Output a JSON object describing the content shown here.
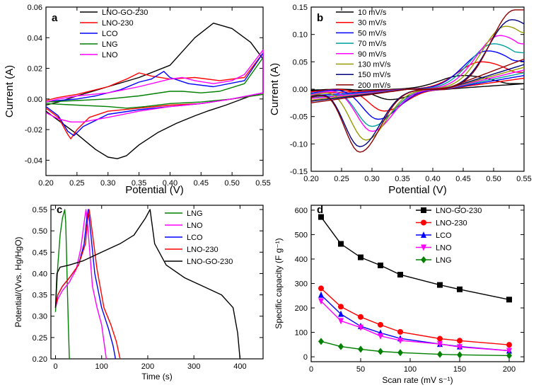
{
  "chart_data": [
    {
      "panel_label": "a",
      "type": "line",
      "xlabel": "Potential (V)",
      "ylabel": "Current (A)",
      "xlim": [
        0.2,
        0.55
      ],
      "ylim": [
        -0.05,
        0.06
      ],
      "xticks": [
        "0.20",
        "0.25",
        "0.30",
        "0.35",
        "0.40",
        "0.45",
        "0.50",
        "0.55"
      ],
      "yticks": [
        "-0.04",
        "-0.02",
        "0.00",
        "0.02",
        "0.04",
        "0.06"
      ],
      "grid": false,
      "legend_position": "top-left",
      "series": [
        {
          "name": "LNO-GO-230",
          "color": "#000000",
          "x": [
            0.2,
            0.22,
            0.25,
            0.28,
            0.3,
            0.315,
            0.33,
            0.35,
            0.38,
            0.41,
            0.44,
            0.46,
            0.475,
            0.49,
            0.51,
            0.53,
            0.55,
            0.55,
            0.53,
            0.5,
            0.47,
            0.44,
            0.4,
            0.35,
            0.3,
            0.25,
            0.22,
            0.2
          ],
          "y": [
            -0.008,
            -0.014,
            -0.023,
            -0.033,
            -0.038,
            -0.039,
            -0.037,
            -0.03,
            -0.022,
            -0.016,
            -0.011,
            -0.008,
            -0.006,
            -0.004,
            -0.001,
            0.002,
            0.004,
            0.026,
            0.037,
            0.046,
            0.0495,
            0.04,
            0.022,
            0.014,
            0.008,
            0.002,
            -0.002,
            -0.004
          ]
        },
        {
          "name": "LNO-230",
          "color": "#ff0000",
          "x": [
            0.2,
            0.22,
            0.235,
            0.24,
            0.25,
            0.27,
            0.3,
            0.35,
            0.4,
            0.45,
            0.5,
            0.55,
            0.55,
            0.52,
            0.48,
            0.44,
            0.4,
            0.37,
            0.35,
            0.33,
            0.3,
            0.25,
            0.22,
            0.2
          ],
          "y": [
            -0.006,
            -0.012,
            -0.023,
            -0.026,
            -0.02,
            -0.012,
            -0.008,
            -0.006,
            -0.004,
            -0.003,
            0.0,
            0.003,
            0.03,
            0.014,
            0.012,
            0.014,
            0.013,
            0.015,
            0.017,
            0.013,
            0.008,
            0.003,
            0.001,
            -0.001
          ]
        },
        {
          "name": "LCO",
          "color": "#0000ff",
          "x": [
            0.2,
            0.22,
            0.235,
            0.245,
            0.26,
            0.3,
            0.35,
            0.4,
            0.45,
            0.5,
            0.55,
            0.55,
            0.52,
            0.47,
            0.43,
            0.4,
            0.39,
            0.37,
            0.35,
            0.32,
            0.28,
            0.25,
            0.22,
            0.2
          ],
          "y": [
            -0.005,
            -0.011,
            -0.021,
            -0.024,
            -0.018,
            -0.01,
            -0.007,
            -0.005,
            -0.003,
            0.0,
            0.004,
            0.03,
            0.012,
            0.008,
            0.01,
            0.014,
            0.018,
            0.013,
            0.011,
            0.006,
            0.002,
            0.0,
            -0.001,
            -0.002
          ]
        },
        {
          "name": "LNG",
          "color": "#008000",
          "x": [
            0.2,
            0.25,
            0.3,
            0.33,
            0.36,
            0.4,
            0.45,
            0.5,
            0.55,
            0.55,
            0.52,
            0.48,
            0.45,
            0.42,
            0.4,
            0.35,
            0.3,
            0.25,
            0.2
          ],
          "y": [
            -0.003,
            -0.004,
            -0.005,
            -0.006,
            -0.005,
            -0.003,
            -0.002,
            0.0,
            0.003,
            0.027,
            0.01,
            0.005,
            0.004,
            0.005,
            0.005,
            0.002,
            0.0,
            -0.001,
            -0.002
          ]
        },
        {
          "name": "LNO",
          "color": "#ff00ff",
          "x": [
            0.2,
            0.22,
            0.24,
            0.26,
            0.3,
            0.35,
            0.4,
            0.45,
            0.5,
            0.55,
            0.55,
            0.52,
            0.5,
            0.47,
            0.44,
            0.42,
            0.4,
            0.35,
            0.3,
            0.25,
            0.22,
            0.2
          ],
          "y": [
            -0.009,
            -0.013,
            -0.015,
            -0.015,
            -0.012,
            -0.008,
            -0.005,
            -0.003,
            0.0,
            0.004,
            0.032,
            0.016,
            0.012,
            0.01,
            0.012,
            0.014,
            0.013,
            0.008,
            0.004,
            0.002,
            0.0,
            -0.002
          ]
        }
      ]
    },
    {
      "panel_label": "b",
      "type": "line",
      "xlabel": "Potential (V)",
      "ylabel": "Current (A)",
      "xlim": [
        0.2,
        0.55
      ],
      "ylim": [
        -0.15,
        0.15
      ],
      "xticks": [
        "0.20",
        "0.25",
        "0.30",
        "0.35",
        "0.40",
        "0.45",
        "0.50",
        "0.55"
      ],
      "yticks": [
        "-0.15",
        "-0.10",
        "-0.05",
        "0.00",
        "0.05",
        "0.10",
        "0.15"
      ],
      "grid": false,
      "legend_position": "top-left",
      "series": [
        {
          "name": "10 mV/s",
          "color": "#000000",
          "cathodic_peak": [
            0.33,
            -0.019
          ],
          "anodic_peak": [
            0.45,
            0.025
          ],
          "end_high": 0.01,
          "end_low": 0.01,
          "start": -0.003
        },
        {
          "name": "30 mV/s",
          "color": "#ff0000",
          "cathodic_peak": [
            0.32,
            -0.04
          ],
          "anodic_peak": [
            0.48,
            0.05
          ],
          "end_high": 0.03,
          "end_low": 0.02,
          "start": -0.008
        },
        {
          "name": "50 mV/s",
          "color": "#0000ff",
          "cathodic_peak": [
            0.31,
            -0.055
          ],
          "anodic_peak": [
            0.49,
            0.07
          ],
          "end_high": 0.05,
          "end_low": 0.025,
          "start": -0.012
        },
        {
          "name": "70 mV/s",
          "color": "#00a0a0",
          "cathodic_peak": [
            0.3,
            -0.068
          ],
          "anodic_peak": [
            0.5,
            0.083
          ],
          "end_high": 0.065,
          "end_low": 0.03,
          "start": -0.015
        },
        {
          "name": "90 mV/s",
          "color": "#ff00ff",
          "cathodic_peak": [
            0.3,
            -0.077
          ],
          "anodic_peak": [
            0.51,
            0.098
          ],
          "end_high": 0.08,
          "end_low": 0.035,
          "start": -0.017
        },
        {
          "name": "130 mV/s",
          "color": "#999900",
          "cathodic_peak": [
            0.29,
            -0.093
          ],
          "anodic_peak": [
            0.52,
            0.115
          ],
          "end_high": 0.1,
          "end_low": 0.04,
          "start": -0.02
        },
        {
          "name": "150 mV/s",
          "color": "#000080",
          "cathodic_peak": [
            0.28,
            -0.105
          ],
          "anodic_peak": [
            0.53,
            0.127
          ],
          "end_high": 0.115,
          "end_low": 0.045,
          "start": -0.022
        },
        {
          "name": "200 mV/s",
          "color": "#8b0000",
          "cathodic_peak": [
            0.28,
            -0.115
          ],
          "anodic_peak": [
            0.535,
            0.145
          ],
          "end_high": 0.145,
          "end_low": 0.055,
          "start": -0.025
        }
      ]
    },
    {
      "panel_label": "c",
      "type": "line",
      "xlabel": "Time (s)",
      "ylabel": "Potential/(Vvs. Hg/HgO)",
      "xlim": [
        -10,
        450
      ],
      "ylim": [
        0.2,
        0.56
      ],
      "xticks": [
        "0",
        "100",
        "200",
        "300",
        "400"
      ],
      "yticks": [
        "0.20",
        "0.25",
        "0.30",
        "0.35",
        "0.40",
        "0.45",
        "0.50",
        "0.55"
      ],
      "grid": false,
      "legend_position": "top-right",
      "series": [
        {
          "name": "LNG",
          "color": "#008000",
          "x": [
            0,
            2,
            5,
            10,
            15,
            20,
            22,
            24,
            26,
            28,
            30
          ],
          "y": [
            0.31,
            0.36,
            0.42,
            0.49,
            0.53,
            0.55,
            0.52,
            0.44,
            0.35,
            0.27,
            0.2
          ]
        },
        {
          "name": "LNO",
          "color": "#ff00ff",
          "x": [
            0,
            5,
            15,
            30,
            45,
            55,
            62,
            66,
            70,
            80,
            90,
            100,
            105,
            110
          ],
          "y": [
            0.32,
            0.34,
            0.36,
            0.38,
            0.41,
            0.46,
            0.52,
            0.55,
            0.51,
            0.37,
            0.32,
            0.28,
            0.24,
            0.2
          ]
        },
        {
          "name": "LCO",
          "color": "#0000ff",
          "x": [
            0,
            5,
            15,
            30,
            50,
            62,
            68,
            71,
            75,
            85,
            100,
            115,
            125,
            130
          ],
          "y": [
            0.32,
            0.35,
            0.37,
            0.39,
            0.42,
            0.47,
            0.53,
            0.55,
            0.51,
            0.4,
            0.32,
            0.27,
            0.23,
            0.2
          ]
        },
        {
          "name": "LNO-230",
          "color": "#ff0000",
          "x": [
            0,
            5,
            15,
            30,
            50,
            65,
            70,
            73,
            77,
            90,
            105,
            120,
            132,
            140
          ],
          "y": [
            0.32,
            0.35,
            0.37,
            0.39,
            0.42,
            0.47,
            0.53,
            0.55,
            0.52,
            0.41,
            0.32,
            0.28,
            0.24,
            0.2
          ]
        },
        {
          "name": "LNO-GO-230",
          "color": "#000000",
          "x": [
            0,
            3,
            10,
            30,
            60,
            100,
            140,
            170,
            195,
            205,
            215,
            240,
            280,
            320,
            360,
            385,
            395,
            400
          ],
          "y": [
            0.32,
            0.4,
            0.415,
            0.42,
            0.43,
            0.45,
            0.47,
            0.49,
            0.53,
            0.55,
            0.47,
            0.42,
            0.39,
            0.37,
            0.35,
            0.32,
            0.26,
            0.2
          ]
        }
      ]
    },
    {
      "panel_label": "d",
      "type": "line",
      "xlabel": "Scan rate (mV s⁻¹)",
      "ylabel": "Specific capacity (F g⁻¹)",
      "xlim": [
        0,
        215
      ],
      "ylim": [
        -20,
        620
      ],
      "xticks": [
        "0",
        "50",
        "100",
        "150",
        "200"
      ],
      "yticks": [
        "0",
        "100",
        "200",
        "300",
        "400",
        "500",
        "600"
      ],
      "grid": false,
      "legend_position": "top-right",
      "x": [
        10,
        30,
        50,
        70,
        90,
        130,
        150,
        200
      ],
      "series": [
        {
          "name": "LNO-GO-230",
          "color": "#000000",
          "marker": "square",
          "values": [
            572,
            462,
            407,
            374,
            336,
            294,
            276,
            234
          ]
        },
        {
          "name": "LNO-230",
          "color": "#ff0000",
          "marker": "circle",
          "values": [
            280,
            205,
            163,
            131,
            102,
            74,
            66,
            49
          ]
        },
        {
          "name": "LCO",
          "color": "#0000ff",
          "marker": "triangle-up",
          "values": [
            253,
            175,
            125,
            98,
            75,
            52,
            42,
            25
          ]
        },
        {
          "name": "LNO",
          "color": "#ff00ff",
          "marker": "triangle-down",
          "values": [
            228,
            147,
            120,
            85,
            67,
            52,
            40,
            25
          ]
        },
        {
          "name": "LNG",
          "color": "#008000",
          "marker": "diamond",
          "values": [
            63,
            42,
            31,
            22,
            17,
            10,
            8,
            5
          ]
        }
      ]
    }
  ]
}
